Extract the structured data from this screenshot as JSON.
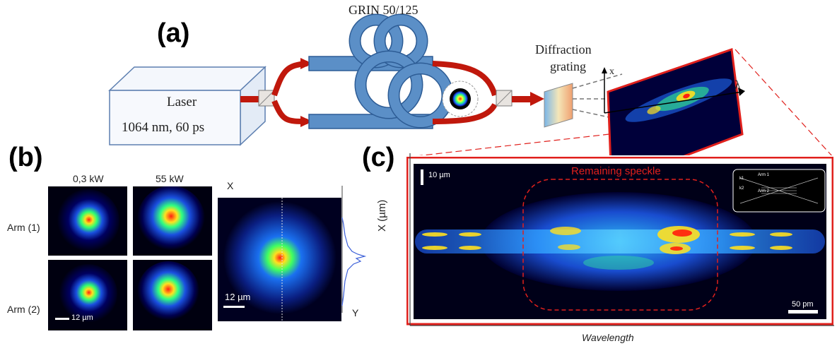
{
  "panels": {
    "a": "(a)",
    "b": "(b)",
    "c": "(c)"
  },
  "setup": {
    "fiber_label": "GRIN 50/125",
    "laser_label": "Laser",
    "laser_spec": "1064 nm, 60 ps",
    "grating_label_line1": "Diffraction",
    "grating_label_line2": "grating",
    "axis_x": "x",
    "axis_lambda": "λ"
  },
  "near_field": {
    "col_low": "0,3 kW",
    "col_high": "55 kW",
    "row1": "Arm (1)",
    "row2": "Arm (2)",
    "scale_small": "12 µm",
    "profile_scale": "12 µm",
    "axis_x": "X",
    "axis_y": "Y"
  },
  "spectrum": {
    "remaining_label": "Remaining speckle",
    "scale_top": "10 µm",
    "scale_bottom": "50 pm",
    "ylabel": "X (µm)",
    "xlabel": "Wavelength",
    "inset_arm1": "Arm 1",
    "inset_arm2": "Arm 2",
    "inset_k1": "k1",
    "inset_k2": "k2"
  },
  "colors": {
    "accent_red": "#e0201c",
    "fiber_blue": "#5b8fc7",
    "beam_red": "#c0180c"
  }
}
